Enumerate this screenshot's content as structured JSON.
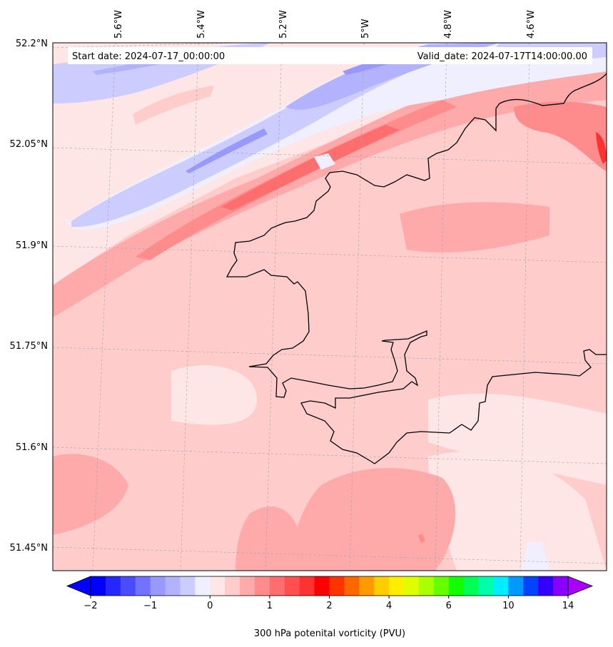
{
  "map": {
    "start_label": "Start date: 2024-07-17_00:00:00",
    "valid_label": "Valid_date: 2024-07-17T14:00:00.00",
    "lon_labels": [
      "5.6°W",
      "5.4°W",
      "5.2°W",
      "5°W",
      "4.8°W",
      "4.6°W"
    ],
    "lat_labels": [
      "52.2°N",
      "52.05°N",
      "51.9°N",
      "51.75°N",
      "51.6°N",
      "51.45°N"
    ],
    "region": "Pembrokeshire coast, Wales",
    "field": "300 hPa potential vorticity"
  },
  "colorbar": {
    "label": "300 hPa potenital vorticity (PVU)",
    "tick_labels": [
      "−2",
      "−1",
      "0",
      "1",
      "2",
      "4",
      "6",
      "10",
      "14"
    ],
    "colors": [
      "#0000ff",
      "#2626ff",
      "#4c4cff",
      "#7272ff",
      "#9898ff",
      "#b2b2ff",
      "#ccccff",
      "#efefff",
      "#ffe6e6",
      "#ffcccc",
      "#ffaaaa",
      "#ff8c8c",
      "#ff6e6e",
      "#ff5050",
      "#ff3232",
      "#ff0000",
      "#ff3300",
      "#ff6600",
      "#ff9900",
      "#ffcc00",
      "#ffee00",
      "#ddff00",
      "#aaff00",
      "#66ff00",
      "#11ff00",
      "#00ff55",
      "#00ffaa",
      "#00eeff",
      "#0099ff",
      "#0044ff",
      "#3300ff",
      "#8800ff"
    ],
    "under_color": "#0000ff",
    "over_color": "#aa00ff"
  }
}
